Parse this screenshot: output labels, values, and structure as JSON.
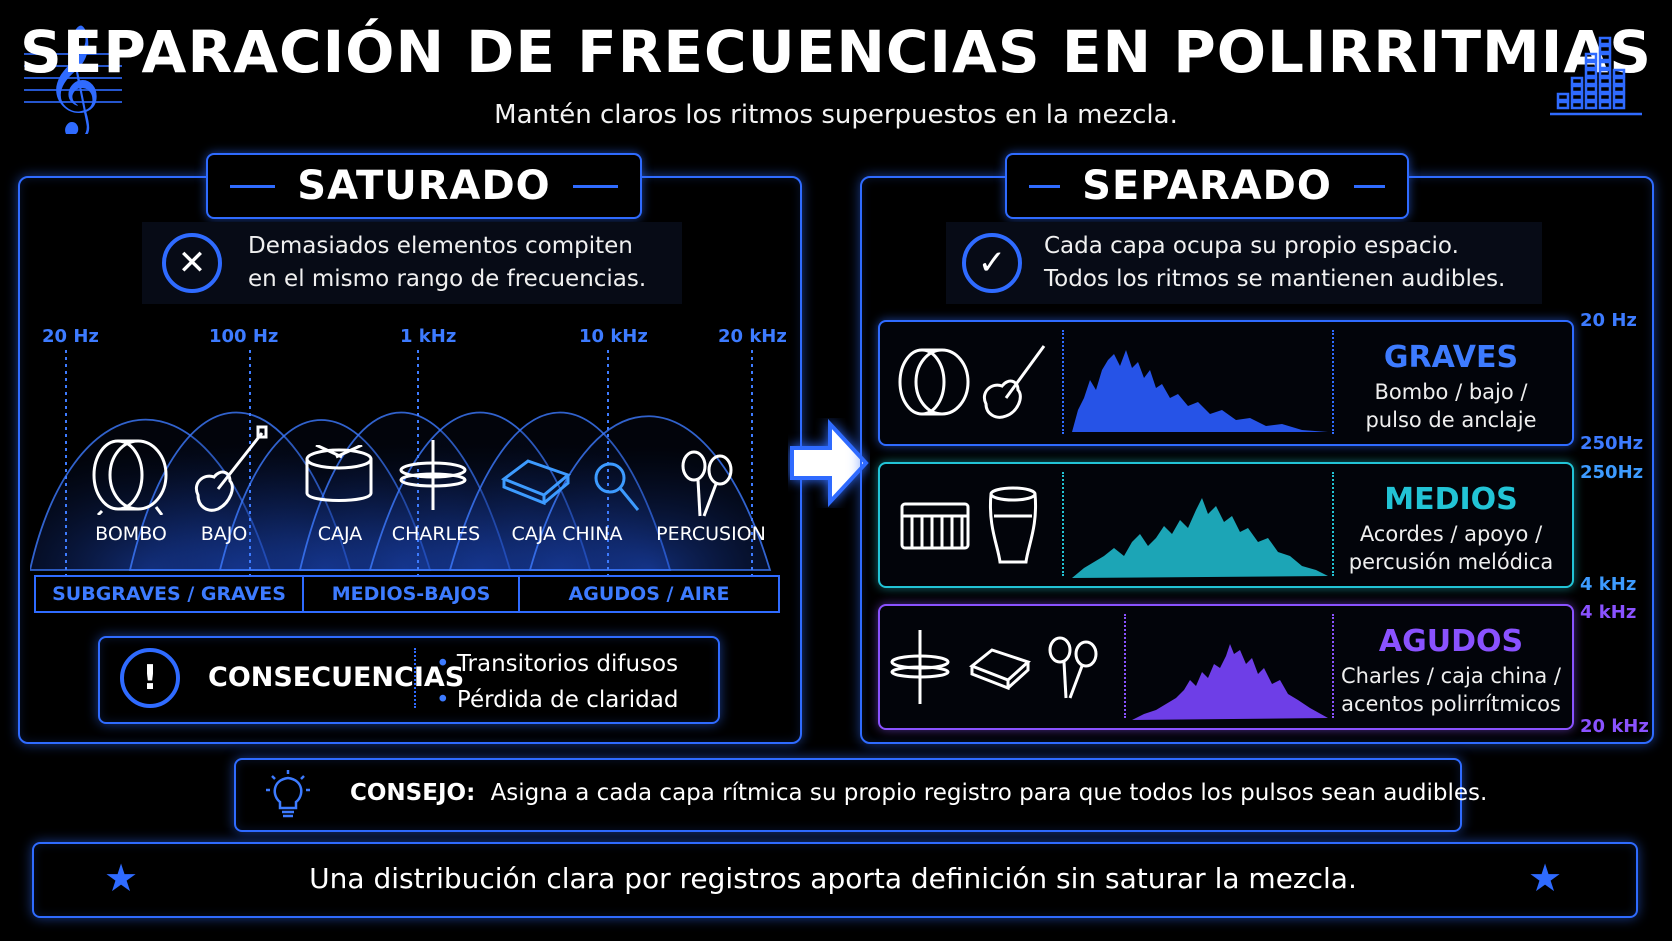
{
  "title": "SEPARACIÓN DE FRECUENCIAS EN POLIRRITMIAS",
  "subtitle": "Mantén claros los ritmos superpuestos en la mezcla.",
  "icons": {
    "left": "treble-clef-icon",
    "right": "equalizer-icon",
    "arrow": "right-arrow-icon"
  },
  "colors": {
    "accent": "#2f6bff",
    "graves": "#2f6bff",
    "medios": "#22c4d6",
    "agudos": "#8a52ff"
  },
  "left_panel": {
    "header": "SATURADO",
    "note_line1": "Demasiados elementos compiten",
    "note_line2": "en el mismo rango de frecuencias.",
    "freq_labels": [
      "20 Hz",
      "100 Hz",
      "1 kHz",
      "10 kHz",
      "20 kHz"
    ],
    "instruments": [
      "BOMBO",
      "BAJO",
      "CAJA",
      "CHARLES",
      "CAJA CHINA",
      "PERCUSION"
    ],
    "bands": [
      "SUBGRAVES / GRAVES",
      "MEDIOS-BAJOS",
      "AGUDOS / AIRE"
    ],
    "consequences_title": "CONSECUENCIAS",
    "consequences": [
      "Transitorios difusos",
      "Pérdida de claridad"
    ]
  },
  "right_panel": {
    "header": "SEPARADO",
    "note_line1": "Cada capa ocupa su propio espacio.",
    "note_line2": "Todos los ritmos se mantienen audibles.",
    "layers": [
      {
        "title": "GRAVES",
        "desc1": "Bombo / bajo /",
        "desc2": "pulso de anclaje",
        "hz_top": "20 Hz",
        "hz_bottom": "250Hz"
      },
      {
        "title": "MEDIOS",
        "desc1": "Acordes / apoyo /",
        "desc2": "percusión melódica",
        "hz_top": "250Hz",
        "hz_bottom": "4 kHz"
      },
      {
        "title": "AGUDOS",
        "desc1": "Charles / caja china /",
        "desc2": "acentos polirrítmicos",
        "hz_top": "4 kHz",
        "hz_bottom": "20 kHz"
      }
    ]
  },
  "tip": {
    "label": "CONSEJO:",
    "text": "Asigna a cada capa rítmica su propio registro para que todos los pulsos sean audibles."
  },
  "footer": {
    "text": "Una distribución clara por registros aporta definición sin saturar la mezcla."
  }
}
